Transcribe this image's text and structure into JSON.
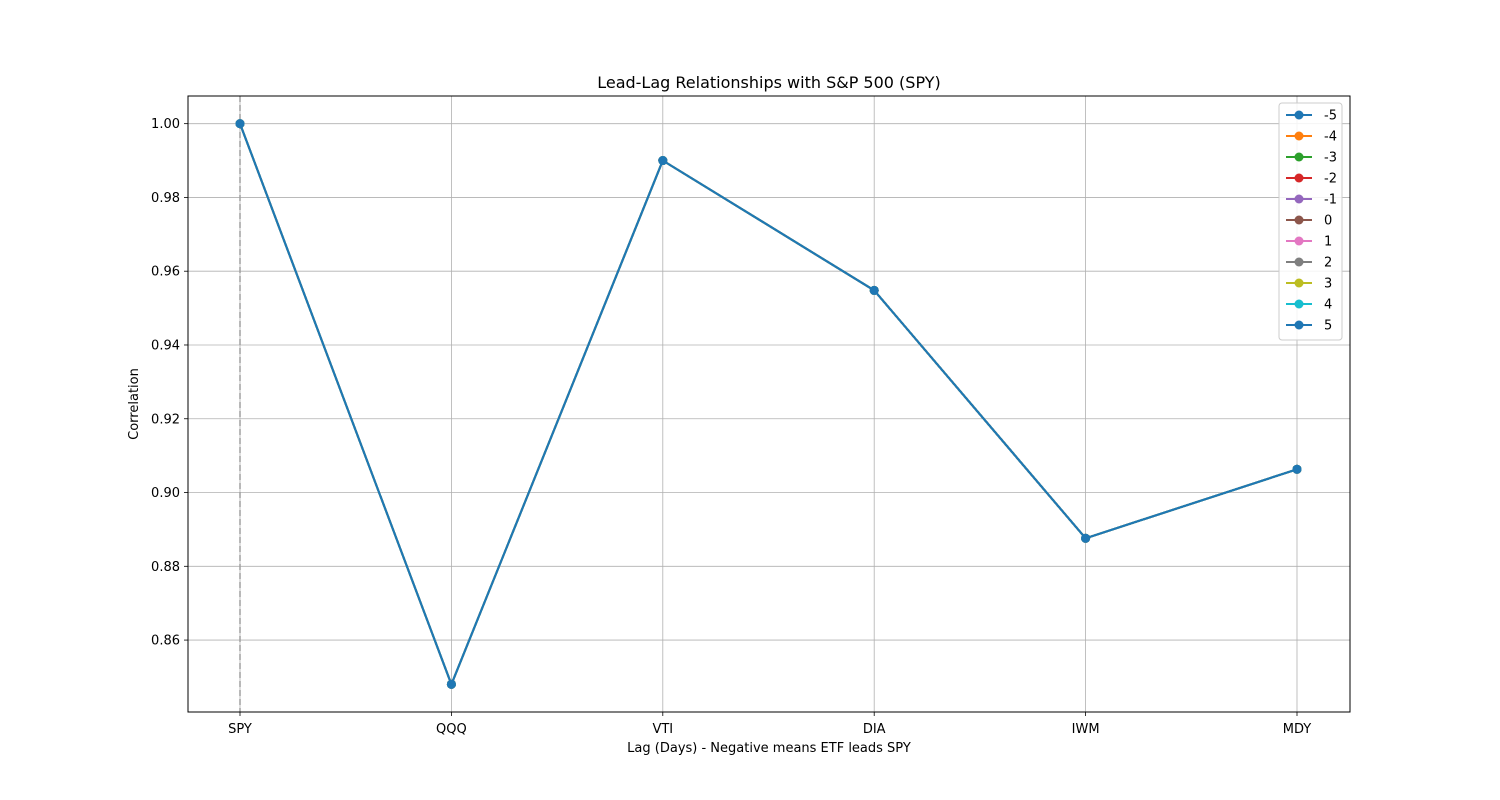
{
  "chart_data": {
    "type": "line",
    "title": "Lead-Lag Relationships with S&P 500 (SPY)",
    "xlabel": "Lag (Days) - Negative means ETF leads SPY",
    "ylabel": "Correlation",
    "categories": [
      "SPY",
      "QQQ",
      "VTI",
      "DIA",
      "IWM",
      "MDY"
    ],
    "ylim": [
      0.8405,
      1.0075
    ],
    "yticks": [
      0.86,
      0.88,
      0.9,
      0.92,
      0.94,
      0.96,
      0.98,
      1.0
    ],
    "ytick_labels": [
      "0.86",
      "0.88",
      "0.90",
      "0.92",
      "0.94",
      "0.96",
      "0.98",
      "1.00"
    ],
    "grid": true,
    "legend_position": "top-right",
    "reference_line": {
      "orientation": "vertical",
      "at_category": "SPY",
      "style": "dashed",
      "color": "#a0a0a0"
    },
    "series": [
      {
        "name": "-5",
        "color": "#1f77b4",
        "values": [
          1.0,
          0.848,
          0.99,
          0.9548,
          0.8876,
          0.9063
        ]
      },
      {
        "name": "-4",
        "color": "#ff7f0e",
        "values": [
          1.0,
          0.848,
          0.99,
          0.9548,
          0.8876,
          0.9063
        ]
      },
      {
        "name": "-3",
        "color": "#2ca02c",
        "values": [
          1.0,
          0.848,
          0.99,
          0.9548,
          0.8876,
          0.9063
        ]
      },
      {
        "name": "-2",
        "color": "#d62728",
        "values": [
          1.0,
          0.848,
          0.99,
          0.9548,
          0.8876,
          0.9063
        ]
      },
      {
        "name": "-1",
        "color": "#9467bd",
        "values": [
          1.0,
          0.848,
          0.99,
          0.9548,
          0.8876,
          0.9063
        ]
      },
      {
        "name": "0",
        "color": "#8c564b",
        "values": [
          1.0,
          0.848,
          0.99,
          0.9548,
          0.8876,
          0.9063
        ]
      },
      {
        "name": "1",
        "color": "#e377c2",
        "values": [
          1.0,
          0.848,
          0.99,
          0.9548,
          0.8876,
          0.9063
        ]
      },
      {
        "name": "2",
        "color": "#7f7f7f",
        "values": [
          1.0,
          0.848,
          0.99,
          0.9548,
          0.8876,
          0.9063
        ]
      },
      {
        "name": "3",
        "color": "#bcbd22",
        "values": [
          1.0,
          0.848,
          0.99,
          0.9548,
          0.8876,
          0.9063
        ]
      },
      {
        "name": "4",
        "color": "#17becf",
        "values": [
          1.0,
          0.848,
          0.99,
          0.9548,
          0.8876,
          0.9063
        ]
      },
      {
        "name": "5",
        "color": "#1f77b4",
        "values": [
          1.0,
          0.848,
          0.99,
          0.9548,
          0.8876,
          0.9063
        ]
      }
    ]
  }
}
